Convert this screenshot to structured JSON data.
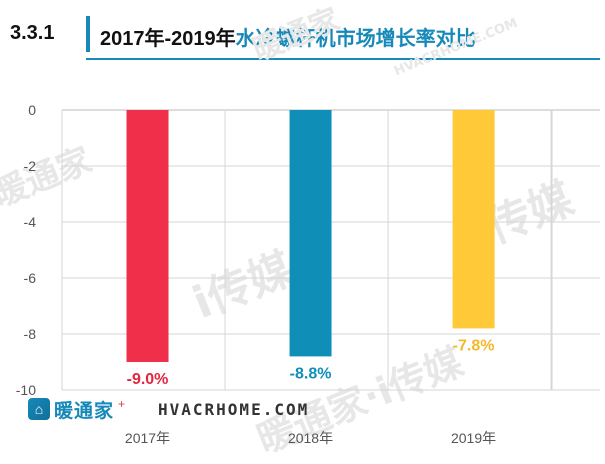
{
  "header": {
    "section_number": "3.3.1",
    "title_part1": "2017年-2019年",
    "title_part2": "水冷螺杆机市场增长率对比"
  },
  "watermarks": [
    "暖通家",
    "HVACRHOME.COM",
    "i传媒",
    "暖通家",
    "i传媒",
    "暖通家·i传媒"
  ],
  "footer": {
    "logo_text": "暖通家",
    "url": "HVACRHOME.COM"
  },
  "colors": {
    "accent": "#1689b8",
    "bar_2017": "#f0304a",
    "bar_2018": "#0f8fb8",
    "bar_2019": "#ffc938"
  },
  "chart_data": {
    "type": "bar",
    "categories": [
      "2017年",
      "2018年",
      "2019年"
    ],
    "values": [
      -9.0,
      -8.8,
      -7.8
    ],
    "data_labels": [
      "-9.0%",
      "-8.8%",
      "-7.8%"
    ],
    "bar_colors": [
      "#f0304a",
      "#0f8fb8",
      "#ffc938"
    ],
    "label_colors": [
      "#e2263f",
      "#0f8fb8",
      "#f5b82a"
    ],
    "ylim": [
      -10,
      0
    ],
    "yticks": [
      0,
      -2,
      -4,
      -6,
      -8,
      -10
    ],
    "grid": true,
    "title": "",
    "xlabel": "",
    "ylabel": ""
  }
}
